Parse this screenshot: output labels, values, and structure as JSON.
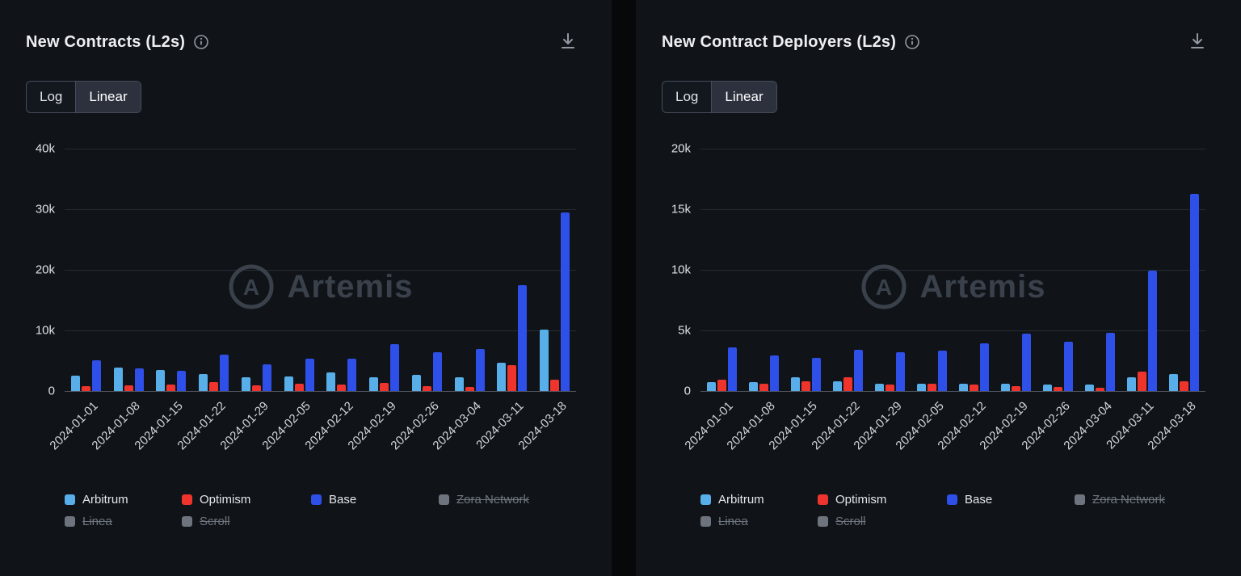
{
  "watermark": {
    "text": "Artemis",
    "logo_letter": "A"
  },
  "icons": {
    "info": "info-icon",
    "download": "download-icon"
  },
  "panels": [
    {
      "title": "New Contracts (L2s)",
      "toggle": {
        "options": [
          "Log",
          "Linear"
        ],
        "selected": "Linear"
      }
    },
    {
      "title": "New Contract Deployers (L2s)",
      "toggle": {
        "options": [
          "Log",
          "Linear"
        ],
        "selected": "Linear"
      }
    }
  ],
  "chart_data": [
    {
      "type": "bar",
      "title": "New Contracts (L2s)",
      "categories": [
        "2024-01-01",
        "2024-01-08",
        "2024-01-15",
        "2024-01-22",
        "2024-01-29",
        "2024-02-05",
        "2024-02-12",
        "2024-02-19",
        "2024-02-26",
        "2024-03-04",
        "2024-03-11",
        "2024-03-18"
      ],
      "series": [
        {
          "name": "Arbitrum",
          "color": "#57aee8",
          "values": [
            2500,
            3800,
            3400,
            2800,
            2300,
            2400,
            3000,
            2300,
            2700,
            2300,
            4700,
            10100
          ]
        },
        {
          "name": "Optimism",
          "color": "#ef342e",
          "values": [
            800,
            900,
            1100,
            1500,
            900,
            1200,
            1000,
            1300,
            800,
            700,
            4300,
            1900
          ]
        },
        {
          "name": "Base",
          "color": "#2e4fe8",
          "values": [
            5000,
            3700,
            3300,
            6000,
            4400,
            5300,
            5300,
            7700,
            6400,
            6900,
            17500,
            29500
          ]
        }
      ],
      "legend": [
        {
          "label": "Arbitrum",
          "color": "#57aee8",
          "active": true
        },
        {
          "label": "Optimism",
          "color": "#ef342e",
          "active": true
        },
        {
          "label": "Base",
          "color": "#2e4fe8",
          "active": true
        },
        {
          "label": "Zora Network",
          "color": "#6e747d",
          "active": false
        },
        {
          "label": "Linea",
          "color": "#6e747d",
          "active": false
        },
        {
          "label": "Scroll",
          "color": "#6e747d",
          "active": false
        }
      ],
      "ylim": [
        0,
        40000
      ],
      "yticks": [
        {
          "label": "40k",
          "value": 40000
        },
        {
          "label": "30k",
          "value": 30000
        },
        {
          "label": "20k",
          "value": 20000
        },
        {
          "label": "10k",
          "value": 10000
        },
        {
          "label": "0",
          "value": 0
        }
      ],
      "grid": true,
      "legend_position": "bottom"
    },
    {
      "type": "bar",
      "title": "New Contract Deployers (L2s)",
      "categories": [
        "2024-01-01",
        "2024-01-08",
        "2024-01-15",
        "2024-01-22",
        "2024-01-29",
        "2024-02-05",
        "2024-02-12",
        "2024-02-19",
        "2024-02-26",
        "2024-03-04",
        "2024-03-11",
        "2024-03-18"
      ],
      "series": [
        {
          "name": "Arbitrum",
          "color": "#57aee8",
          "values": [
            700,
            700,
            1100,
            800,
            600,
            600,
            600,
            600,
            500,
            500,
            1100,
            1400
          ]
        },
        {
          "name": "Optimism",
          "color": "#ef342e",
          "values": [
            900,
            600,
            800,
            1100,
            500,
            600,
            500,
            400,
            300,
            250,
            1600,
            800
          ]
        },
        {
          "name": "Base",
          "color": "#2e4fe8",
          "values": [
            3600,
            2900,
            2700,
            3400,
            3200,
            3300,
            3900,
            4700,
            4100,
            4800,
            9900,
            16300
          ]
        }
      ],
      "legend": [
        {
          "label": "Arbitrum",
          "color": "#57aee8",
          "active": true
        },
        {
          "label": "Optimism",
          "color": "#ef342e",
          "active": true
        },
        {
          "label": "Base",
          "color": "#2e4fe8",
          "active": true
        },
        {
          "label": "Zora Network",
          "color": "#6e747d",
          "active": false
        },
        {
          "label": "Linea",
          "color": "#6e747d",
          "active": false
        },
        {
          "label": "Scroll",
          "color": "#6e747d",
          "active": false
        }
      ],
      "ylim": [
        0,
        20000
      ],
      "yticks": [
        {
          "label": "20k",
          "value": 20000
        },
        {
          "label": "15k",
          "value": 15000
        },
        {
          "label": "10k",
          "value": 10000
        },
        {
          "label": "5k",
          "value": 5000
        },
        {
          "label": "0",
          "value": 0
        }
      ],
      "grid": true,
      "legend_position": "bottom"
    }
  ]
}
